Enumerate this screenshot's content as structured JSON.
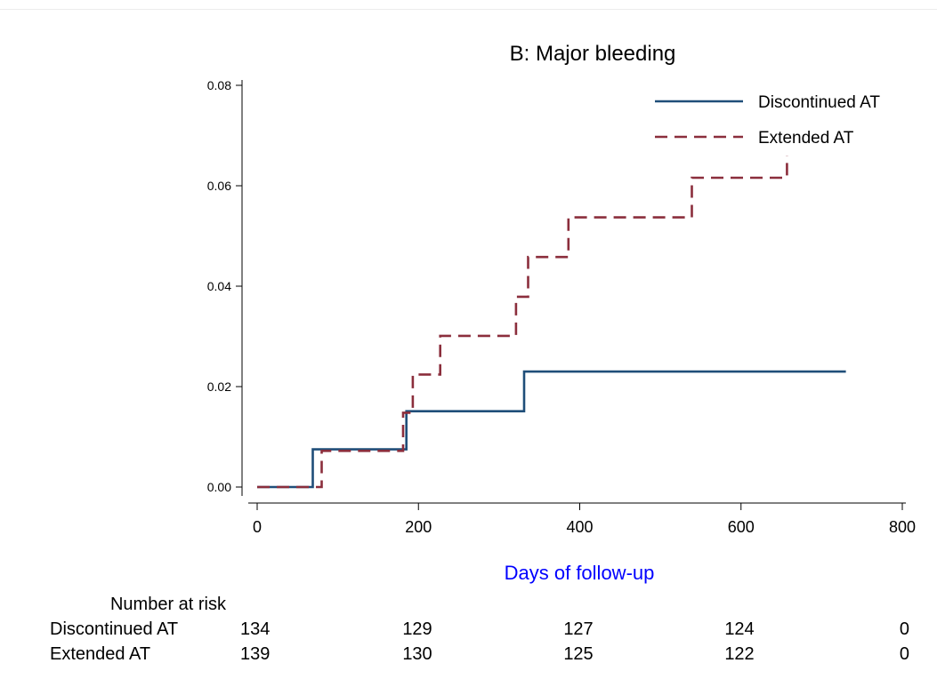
{
  "chart_data": {
    "type": "line",
    "title": "B: Major bleeding",
    "xlabel": "Days of follow-up",
    "ylabel": "",
    "xlim": [
      0,
      800
    ],
    "ylim": [
      0,
      0.08
    ],
    "x_ticks": [
      "0",
      "200",
      "400",
      "600",
      "800"
    ],
    "y_ticks": [
      "0.00",
      "0.02",
      "0.04",
      "0.06",
      "0.08"
    ],
    "x_tick_values": [
      0,
      200,
      400,
      600,
      800
    ],
    "y_tick_values": [
      0,
      0.02,
      0.04,
      0.06,
      0.08
    ],
    "grid": false,
    "legend_position": "top-right",
    "step": true,
    "series": [
      {
        "name": "Discontinued AT",
        "color": "#1f4e79",
        "style": "solid",
        "points": [
          [
            0,
            0
          ],
          [
            69,
            0
          ],
          [
            69,
            0.0075
          ],
          [
            185,
            0.0075
          ],
          [
            185,
            0.0151
          ],
          [
            331,
            0.0151
          ],
          [
            331,
            0.023
          ],
          [
            730,
            0.023
          ]
        ]
      },
      {
        "name": "Extended AT",
        "color": "#8b2e3c",
        "style": "dashed",
        "points": [
          [
            0,
            0
          ],
          [
            80,
            0
          ],
          [
            80,
            0.0072
          ],
          [
            181,
            0.0072
          ],
          [
            181,
            0.0148
          ],
          [
            193,
            0.0148
          ],
          [
            193,
            0.0224
          ],
          [
            227,
            0.0224
          ],
          [
            227,
            0.0301
          ],
          [
            321,
            0.0301
          ],
          [
            321,
            0.0379
          ],
          [
            336,
            0.0379
          ],
          [
            336,
            0.0458
          ],
          [
            386,
            0.0458
          ],
          [
            386,
            0.0537
          ],
          [
            539,
            0.0537
          ],
          [
            539,
            0.0616
          ],
          [
            657,
            0.0616
          ],
          [
            657,
            0.066
          ]
        ]
      }
    ]
  },
  "risk_table": {
    "heading": "Number at risk",
    "rows": [
      {
        "label": "Discontinued AT",
        "values": [
          "134",
          "129",
          "127",
          "124",
          "0"
        ]
      },
      {
        "label": "Extended AT",
        "values": [
          "139",
          "130",
          "125",
          "122",
          "0"
        ]
      }
    ]
  },
  "colors": {
    "axis_title": "#0000ff",
    "text": "#000000"
  }
}
